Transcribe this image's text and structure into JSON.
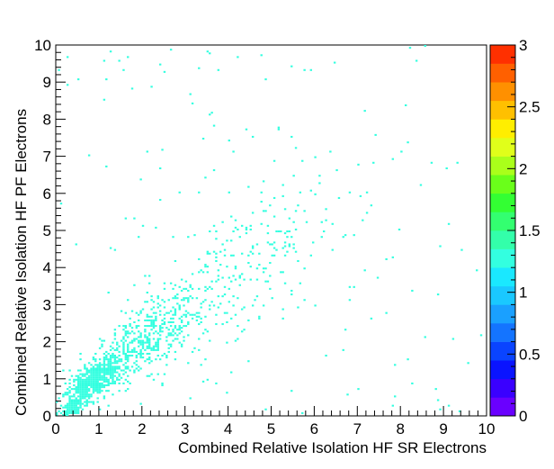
{
  "chart_data": {
    "type": "heatmap",
    "title": "",
    "xlabel": "Combined Relative Isolation HF SR Electrons",
    "ylabel": "Combined Relative Isolation HF PF Electrons",
    "xlim": [
      0,
      10
    ],
    "ylim": [
      0,
      10
    ],
    "xticks": [
      "0",
      "1",
      "2",
      "3",
      "4",
      "5",
      "6",
      "7",
      "8",
      "9",
      "10"
    ],
    "yticks": [
      "0",
      "1",
      "2",
      "3",
      "4",
      "5",
      "6",
      "7",
      "8",
      "9",
      "10"
    ],
    "z_range": [
      0,
      3
    ],
    "z_ticks": [
      "0",
      "0.5",
      "1",
      "1.5",
      "2",
      "2.5",
      "3"
    ],
    "grid": false,
    "legend": "none (color scale on right)",
    "bin_width": 0.05,
    "dominant_bin_value": 1,
    "dominant_bin_color": "#33ffe0",
    "palette": [
      "#6a00ff",
      "#3a00ff",
      "#0a14ff",
      "#0a44ff",
      "#1474ff",
      "#1aa0ff",
      "#1ac8ff",
      "#1ae8ff",
      "#33ffe0",
      "#33ffaa",
      "#33ff70",
      "#33ff33",
      "#6aff1a",
      "#aaff1a",
      "#e0ff1a",
      "#ffee00",
      "#ffc000",
      "#ff9000",
      "#ff6000",
      "#ff3000"
    ],
    "distribution": {
      "description_of_density": "cells with content 1; dense diagonal band near origin",
      "clusters": [
        {
          "center": [
            0.9,
            0.95
          ],
          "sigma_major": 0.45,
          "sigma_minor": 0.18,
          "count": 650
        },
        {
          "center": [
            1.9,
            1.9
          ],
          "sigma_major": 0.7,
          "sigma_minor": 0.35,
          "count": 380
        },
        {
          "center": [
            3.3,
            3.0
          ],
          "sigma_major": 1.0,
          "sigma_minor": 0.55,
          "count": 200
        },
        {
          "center": [
            5.0,
            4.7
          ],
          "sigma_major": 1.4,
          "sigma_minor": 0.9,
          "count": 150
        },
        {
          "center": [
            0.35,
            0.2
          ],
          "sigma_major": 0.2,
          "sigma_minor": 0.08,
          "count": 140
        }
      ],
      "uniform_background_count": 140
    }
  }
}
